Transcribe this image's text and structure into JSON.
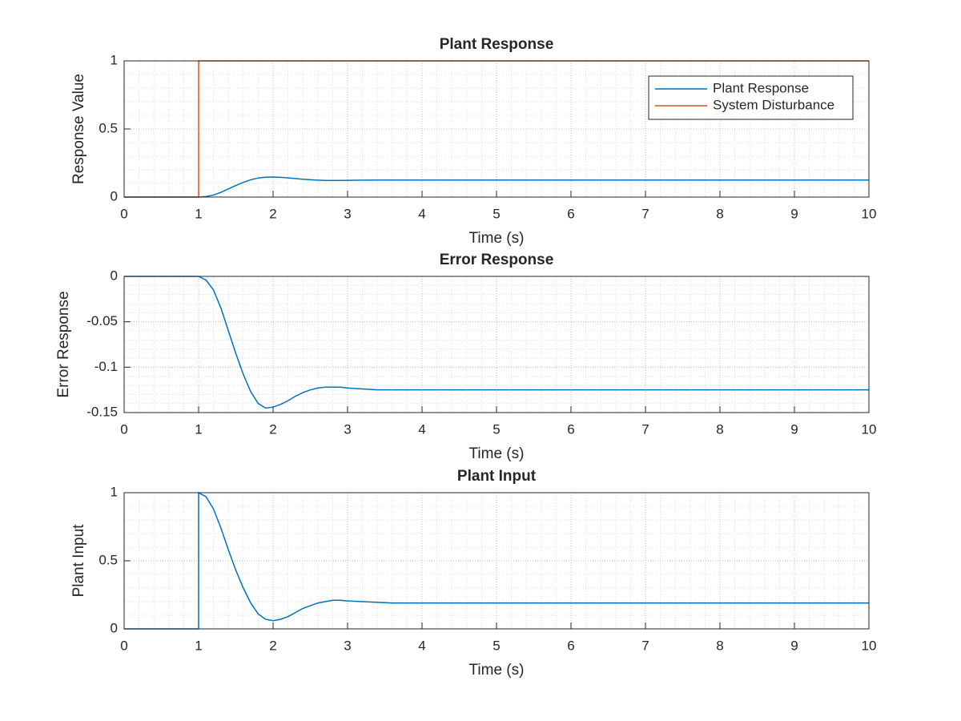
{
  "chart_data": [
    {
      "type": "line",
      "title": "Plant Response",
      "xlabel": "Time (s)",
      "ylabel": "Response Value",
      "xlim": [
        0,
        10
      ],
      "xticks": [
        0,
        1,
        2,
        3,
        4,
        5,
        6,
        7,
        8,
        9,
        10
      ],
      "ylim": [
        0,
        1
      ],
      "yticks": [
        0,
        0.5,
        1
      ],
      "grid": true,
      "minor_grid": true,
      "legend": "upper right",
      "series": [
        {
          "name": "Plant Response",
          "color": "#0072bd",
          "x": [
            0,
            1,
            1.1,
            1.2,
            1.3,
            1.4,
            1.5,
            1.6,
            1.7,
            1.8,
            1.9,
            2.0,
            2.1,
            2.2,
            2.3,
            2.4,
            2.5,
            2.6,
            2.7,
            2.8,
            2.9,
            3.0,
            3.2,
            3.4,
            3.6,
            4,
            5,
            6,
            7,
            8,
            9,
            10
          ],
          "values": [
            0,
            0,
            0.004,
            0.015,
            0.035,
            0.06,
            0.085,
            0.108,
            0.127,
            0.14,
            0.146,
            0.147,
            0.145,
            0.141,
            0.136,
            0.131,
            0.127,
            0.124,
            0.122,
            0.122,
            0.122,
            0.123,
            0.124,
            0.125,
            0.125,
            0.125,
            0.125,
            0.125,
            0.125,
            0.125,
            0.125,
            0.125
          ]
        },
        {
          "name": "System Disturbance",
          "color": "#d95319",
          "x": [
            0,
            1,
            1,
            10
          ],
          "values": [
            0,
            0,
            1,
            1
          ]
        }
      ]
    },
    {
      "type": "line",
      "title": "Error Response",
      "xlabel": "Time (s)",
      "ylabel": "Error Response",
      "xlim": [
        0,
        10
      ],
      "xticks": [
        0,
        1,
        2,
        3,
        4,
        5,
        6,
        7,
        8,
        9,
        10
      ],
      "ylim": [
        -0.15,
        0
      ],
      "yticks": [
        -0.15,
        -0.1,
        -0.05,
        0
      ],
      "grid": true,
      "minor_grid": true,
      "series": [
        {
          "color": "#0072bd",
          "x": [
            0,
            1,
            1.1,
            1.2,
            1.3,
            1.4,
            1.5,
            1.6,
            1.7,
            1.8,
            1.9,
            2.0,
            2.1,
            2.2,
            2.3,
            2.4,
            2.5,
            2.6,
            2.7,
            2.8,
            2.9,
            3.0,
            3.2,
            3.4,
            3.6,
            4,
            5,
            6,
            7,
            8,
            9,
            10
          ],
          "values": [
            0,
            0,
            -0.004,
            -0.015,
            -0.035,
            -0.06,
            -0.085,
            -0.108,
            -0.127,
            -0.14,
            -0.145,
            -0.144,
            -0.141,
            -0.137,
            -0.132,
            -0.128,
            -0.125,
            -0.123,
            -0.122,
            -0.122,
            -0.122,
            -0.123,
            -0.124,
            -0.125,
            -0.125,
            -0.125,
            -0.125,
            -0.125,
            -0.125,
            -0.125,
            -0.125,
            -0.125
          ]
        }
      ]
    },
    {
      "type": "line",
      "title": "Plant Input",
      "xlabel": "Time (s)",
      "ylabel": "Plant Input",
      "xlim": [
        0,
        10
      ],
      "xticks": [
        0,
        1,
        2,
        3,
        4,
        5,
        6,
        7,
        8,
        9,
        10
      ],
      "ylim": [
        0,
        1
      ],
      "yticks": [
        0,
        0.5,
        1
      ],
      "grid": true,
      "minor_grid": true,
      "series": [
        {
          "color": "#0072bd",
          "x": [
            0,
            1,
            1,
            1.1,
            1.2,
            1.3,
            1.4,
            1.5,
            1.6,
            1.7,
            1.8,
            1.9,
            2.0,
            2.1,
            2.2,
            2.3,
            2.4,
            2.5,
            2.6,
            2.7,
            2.8,
            2.9,
            3.0,
            3.2,
            3.4,
            3.6,
            4,
            5,
            6,
            7,
            8,
            9,
            10
          ],
          "values": [
            0,
            0,
            1,
            0.97,
            0.88,
            0.74,
            0.58,
            0.43,
            0.3,
            0.19,
            0.11,
            0.07,
            0.06,
            0.07,
            0.09,
            0.12,
            0.15,
            0.17,
            0.19,
            0.2,
            0.21,
            0.21,
            0.205,
            0.2,
            0.195,
            0.19,
            0.19,
            0.19,
            0.19,
            0.19,
            0.19,
            0.19,
            0.19
          ]
        }
      ]
    }
  ]
}
